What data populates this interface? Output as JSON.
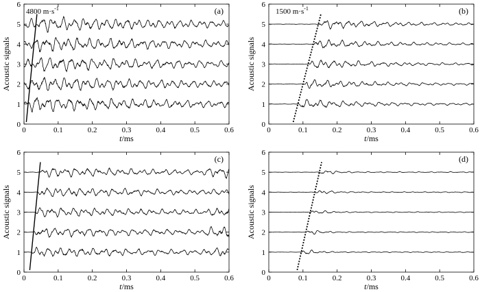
{
  "chart_data": [
    {
      "type": "line",
      "panel_label": "(a)",
      "xlabel_italic": "t",
      "xlabel_unit": "/ms",
      "ylabel": "Acoustic signals",
      "xlim": [
        0,
        0.6
      ],
      "ylim": [
        0,
        6
      ],
      "xticks": [
        "0",
        "0.1",
        "0.2",
        "0.3",
        "0.4",
        "0.5",
        "0.6"
      ],
      "yticks": [
        "0",
        "1",
        "2",
        "3",
        "4",
        "5",
        "6"
      ],
      "annotation": {
        "text_main": "4800 m·s",
        "text_sup": "-1"
      },
      "velocity_line": {
        "style": "solid",
        "t_at_trace_1": 0.012,
        "t_at_trace_5": 0.035
      },
      "traces": {
        "baselines": [
          1,
          2,
          3,
          4,
          5
        ],
        "x_start": 0.0,
        "x_end": 0.6,
        "onset_first": 0.012,
        "onset_last": 0.035,
        "amplitude": "large",
        "decay": "slow",
        "late_activity": false
      },
      "grid": false
    },
    {
      "type": "line",
      "panel_label": "(b)",
      "xlabel_italic": "t",
      "xlabel_unit": "/ms",
      "ylabel": "Acoustic signals",
      "xlim": [
        0,
        0.6
      ],
      "ylim": [
        0,
        6
      ],
      "xticks": [
        "0",
        "0.1",
        "0.2",
        "0.3",
        "0.4",
        "0.5",
        "0.6"
      ],
      "yticks": [
        "0",
        "1",
        "2",
        "3",
        "4",
        "5",
        "6"
      ],
      "annotation": {
        "text_main": "1500 m·s",
        "text_sup": "-1"
      },
      "velocity_line": {
        "style": "dotted",
        "t_at_trace_1": 0.085,
        "t_at_trace_5": 0.145
      },
      "traces": {
        "baselines": [
          1,
          2,
          3,
          4,
          5
        ],
        "x_start": 0.0,
        "x_end": 0.6,
        "onset_first": 0.085,
        "onset_last": 0.145,
        "amplitude": "medium",
        "decay": "medium",
        "late_activity": false
      },
      "grid": false
    },
    {
      "type": "line",
      "panel_label": "(c)",
      "xlabel_italic": "t",
      "xlabel_unit": "/ms",
      "ylabel": "Acoustic signals",
      "xlim": [
        0,
        0.6
      ],
      "ylim": [
        0,
        6
      ],
      "xticks": [
        "0",
        "0.1",
        "0.2",
        "0.3",
        "0.4",
        "0.5",
        "0.6"
      ],
      "yticks": [
        "0",
        "1",
        "2",
        "3",
        "4",
        "5",
        "6"
      ],
      "velocity_line": {
        "style": "solid",
        "t_at_trace_1": 0.022,
        "t_at_trace_5": 0.045
      },
      "traces": {
        "baselines": [
          1,
          2,
          3,
          4,
          5
        ],
        "x_start": 0.0,
        "x_end": 0.6,
        "onset_first": 0.022,
        "onset_last": 0.045,
        "amplitude": "medium",
        "decay": "slow",
        "late_activity": true
      },
      "grid": false
    },
    {
      "type": "line",
      "panel_label": "(d)",
      "xlabel_italic": "t",
      "xlabel_unit": "/ms",
      "ylabel": "Acoustic signals",
      "xlim": [
        0,
        0.6
      ],
      "ylim": [
        0,
        6
      ],
      "xticks": [
        "0",
        "0.1",
        "0.2",
        "0.3",
        "0.4",
        "0.5",
        "0.6"
      ],
      "yticks": [
        "0",
        "1",
        "2",
        "3",
        "4",
        "5",
        "6"
      ],
      "velocity_line": {
        "style": "dotted",
        "t_at_trace_1": 0.095,
        "t_at_trace_5": 0.148
      },
      "traces": {
        "baselines": [
          1,
          2,
          3,
          4,
          5
        ],
        "x_start": 0.0,
        "x_end": 0.6,
        "onset_first": 0.095,
        "onset_last": 0.148,
        "amplitude": "small",
        "decay": "fast",
        "late_activity": false
      },
      "grid": false
    }
  ]
}
